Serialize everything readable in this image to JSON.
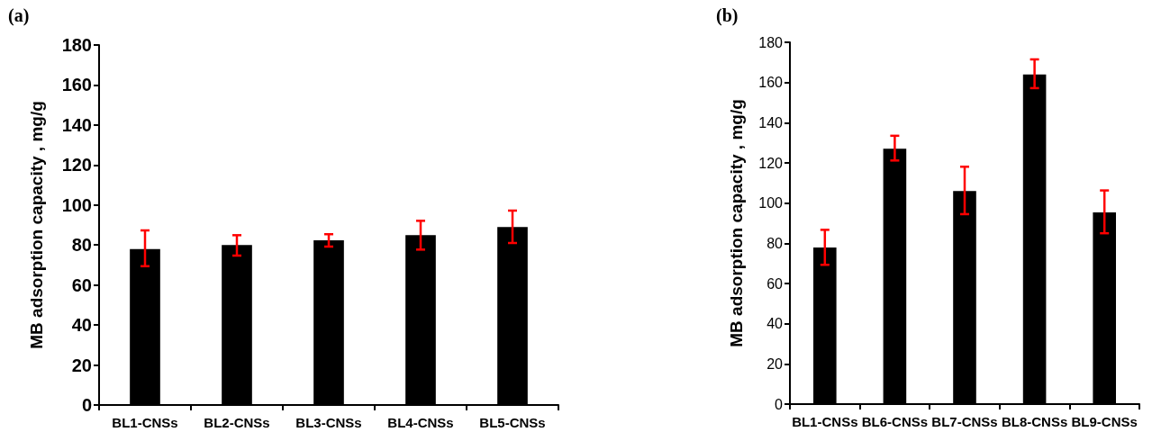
{
  "chart_data": [
    {
      "type": "bar",
      "title": "(a)",
      "ylabel": "MB adsorption capacity , mg/g",
      "categories": [
        "BL1-CNSs",
        "BL2-CNSs",
        "BL3-CNSs",
        "BL4-CNSs",
        "BL5-CNSs"
      ],
      "series": [
        {
          "color": "#000000",
          "values": [
            78,
            80,
            82.4,
            84.9,
            89
          ],
          "errors": [
            [
              69.4,
              87.3
            ],
            [
              74.7,
              84.9
            ],
            [
              79.2,
              85.4
            ],
            [
              77.7,
              92.1
            ],
            [
              81,
              97.2
            ]
          ]
        }
      ],
      "ylim": [
        0,
        180
      ],
      "yticks": [
        0,
        20,
        40,
        60,
        80,
        100,
        120,
        140,
        160,
        180
      ],
      "grid": false
    },
    {
      "type": "bar",
      "title": "(b)",
      "ylabel": "MB adsorption capacity , mg/g",
      "categories": [
        "BL1-CNSs",
        "BL6-CNSs",
        "BL7-CNSs",
        "BL8-CNSs",
        "BL9-CNSs"
      ],
      "series": [
        {
          "color": "#000000",
          "values": [
            77.9,
            127,
            106,
            164,
            95.4
          ],
          "errors": [
            [
              69.3,
              86.7
            ],
            [
              121.2,
              133.5
            ],
            [
              94.5,
              118.1
            ],
            [
              157.2,
              171.5
            ],
            [
              85,
              106.3
            ]
          ]
        }
      ],
      "ylim": [
        0,
        180
      ],
      "yticks": [
        0,
        20,
        40,
        60,
        80,
        100,
        120,
        140,
        160,
        180
      ],
      "grid": false
    }
  ]
}
